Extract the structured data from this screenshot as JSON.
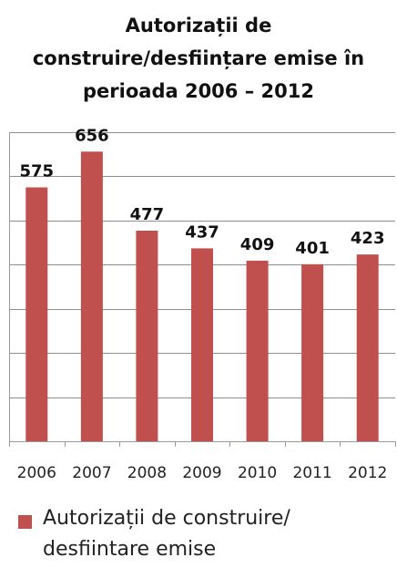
{
  "chart_data": {
    "type": "bar",
    "title_lines": [
      "Autorizații de",
      "construire/desființare emise în",
      "perioada 2006 – 2012"
    ],
    "categories": [
      "2006",
      "2007",
      "2008",
      "2009",
      "2010",
      "2011",
      "2012"
    ],
    "values": [
      575,
      656,
      477,
      437,
      409,
      401,
      423
    ],
    "data_labels": [
      "575",
      "656",
      "477",
      "437",
      "409",
      "401",
      "423"
    ],
    "series": [
      {
        "name": "Autorizații de construire/ desfiintare emise",
        "values": [
          575,
          656,
          477,
          437,
          409,
          401,
          423
        ]
      }
    ],
    "ylim": [
      0,
      700
    ],
    "grid": true,
    "legend_position": "bottom-left",
    "bar_color": "#c0504d"
  }
}
